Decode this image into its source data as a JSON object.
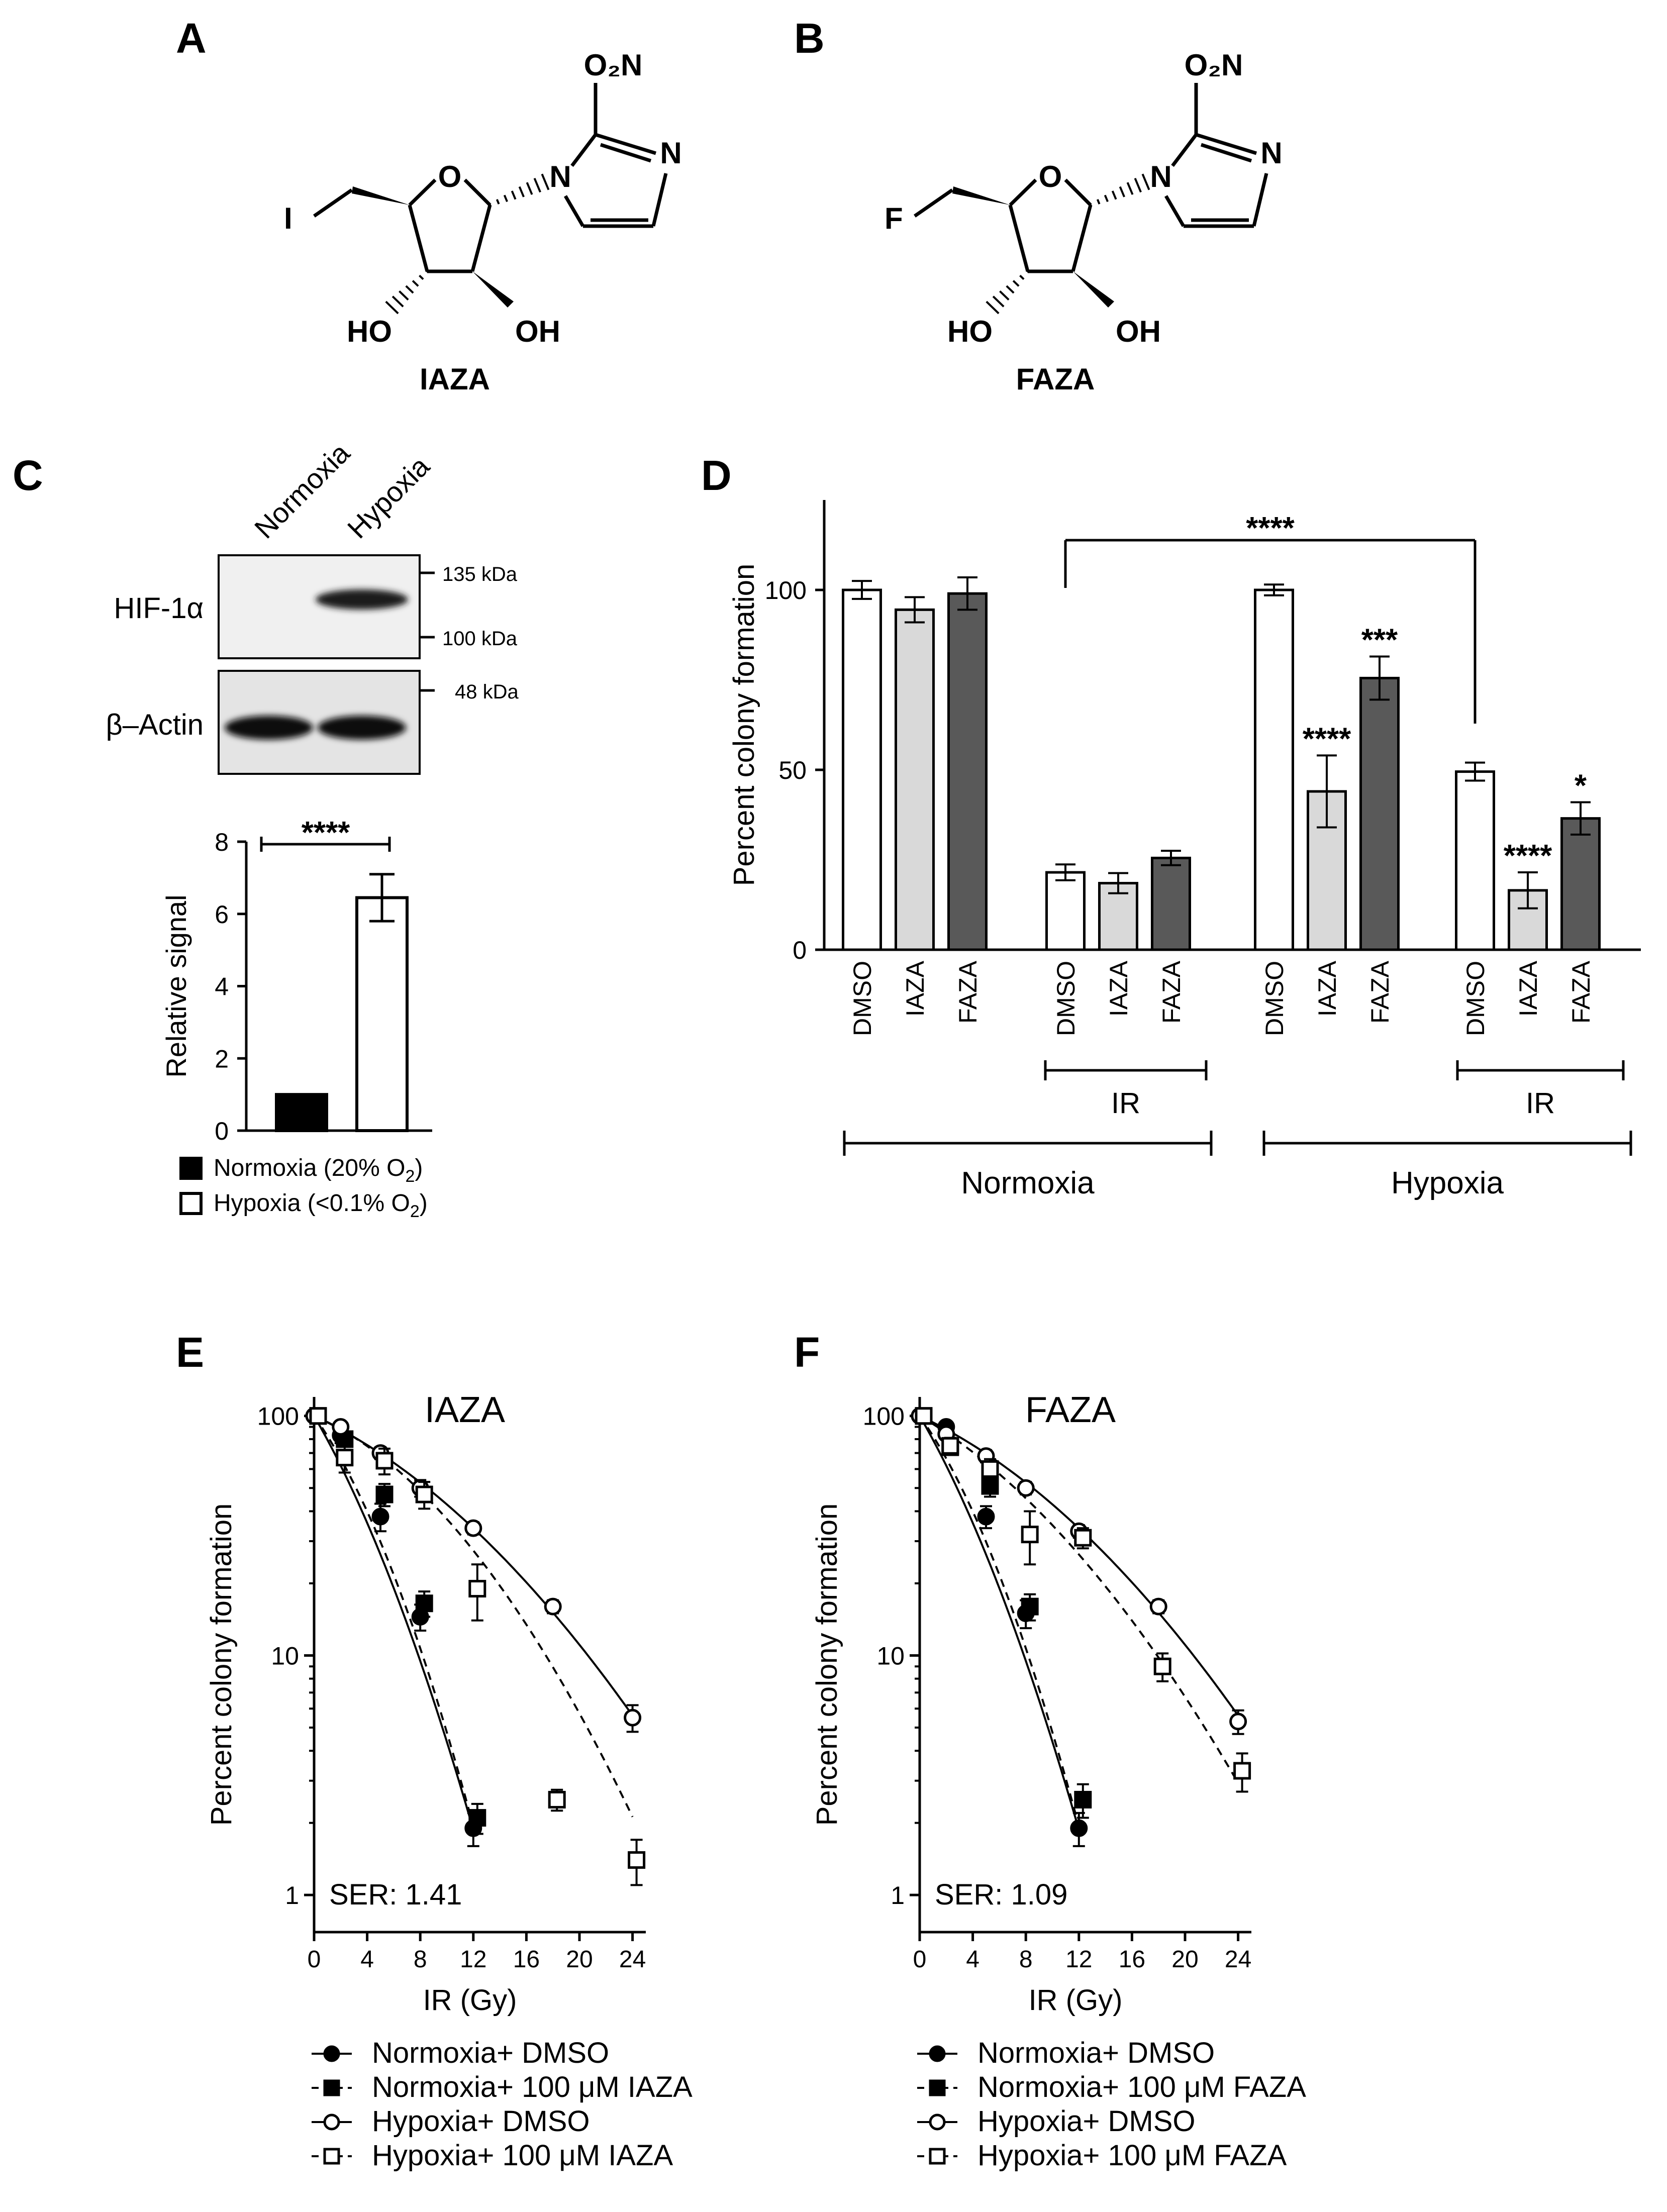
{
  "panels": {
    "A": "A",
    "B": "B",
    "C": "C",
    "D": "D",
    "E": "E",
    "F": "F"
  },
  "structures": {
    "iaza": {
      "name": "IAZA",
      "halogen": "I",
      "no2": "O₂N",
      "o": "O",
      "n_ring": "N",
      "n_amine": "N",
      "ho": "HO",
      "oh": "OH"
    },
    "faza": {
      "name": "FAZA",
      "halogen": "F",
      "no2": "O₂N",
      "o": "O",
      "n_ring": "N",
      "n_amine": "N",
      "ho": "HO",
      "oh": "OH"
    }
  },
  "western": {
    "lanes": [
      "Normoxia",
      "Hypoxia"
    ],
    "rows": [
      "HIF-1α",
      "β–Actin"
    ],
    "markers": [
      "135 kDa",
      "100 kDa",
      "48 kDa"
    ]
  },
  "chart_data": [
    {
      "panel": "C",
      "type": "bar",
      "categories": [
        "Normoxia (20% O₂)",
        "Hypoxia (<0.1% O₂)"
      ],
      "values": [
        1.0,
        6.45
      ],
      "errors": [
        0,
        0.65
      ],
      "colors": [
        "#000000",
        "#ffffff"
      ],
      "ylabel": "Relative signal",
      "ylim": [
        0,
        8
      ],
      "yticks": [
        0,
        2,
        4,
        6,
        8
      ],
      "significance": "****",
      "legend": [
        {
          "label": "Normoxia (20% O",
          "sub": "2",
          "close": ")",
          "fill": "#000000"
        },
        {
          "label": "Hypoxia (<0.1% O",
          "sub": "2",
          "close": ")",
          "fill": "#ffffff"
        }
      ]
    },
    {
      "panel": "D",
      "type": "bar",
      "ylabel": "Percent colony formation",
      "ylim": [
        0,
        125
      ],
      "yticks": [
        0,
        50,
        100
      ],
      "groups": [
        {
          "bars": [
            {
              "label": "DMSO",
              "value": 100,
              "err": 2.5,
              "color": "#ffffff",
              "sig": ""
            },
            {
              "label": "IAZA",
              "value": 94.5,
              "err": 3.5,
              "color": "#d9d9d9",
              "sig": ""
            },
            {
              "label": "FAZA",
              "value": 99,
              "err": 4.5,
              "color": "#595959",
              "sig": ""
            }
          ]
        },
        {
          "bars": [
            {
              "label": "DMSO",
              "value": 21.5,
              "err": 2.2,
              "color": "#ffffff",
              "sig": ""
            },
            {
              "label": "IAZA",
              "value": 18.5,
              "err": 2.8,
              "color": "#d9d9d9",
              "sig": ""
            },
            {
              "label": "FAZA",
              "value": 25.5,
              "err": 2,
              "color": "#595959",
              "sig": ""
            }
          ]
        },
        {
          "bars": [
            {
              "label": "DMSO",
              "value": 100,
              "err": 1.5,
              "color": "#ffffff",
              "sig": ""
            },
            {
              "label": "IAZA",
              "value": 44,
              "err": 10,
              "color": "#d9d9d9",
              "sig": "****"
            },
            {
              "label": "FAZA",
              "value": 75.5,
              "err": 6,
              "color": "#595959",
              "sig": "***"
            }
          ]
        },
        {
          "bars": [
            {
              "label": "DMSO",
              "value": 49.5,
              "err": 2.5,
              "color": "#ffffff",
              "sig": ""
            },
            {
              "label": "IAZA",
              "value": 16.5,
              "err": 5,
              "color": "#d9d9d9",
              "sig": "****"
            },
            {
              "label": "FAZA",
              "value": 36.5,
              "err": 4.5,
              "color": "#595959",
              "sig": "*"
            }
          ]
        }
      ],
      "ir_label": "IR",
      "conditions": [
        "Normoxia",
        "Hypoxia"
      ],
      "bracket_sig": "****"
    },
    {
      "panel": "E",
      "type": "scatter",
      "title": "IAZA",
      "xlabel": "IR (Gy)",
      "ylabel": "Percent colony formation",
      "yscale": "log",
      "xlim": [
        0,
        25
      ],
      "ylim": [
        0.7,
        120
      ],
      "xticks": [
        0,
        4,
        8,
        12,
        16,
        20,
        24
      ],
      "yticks": [
        {
          "v": 1,
          "label": "1"
        },
        {
          "v": 10,
          "label": "10"
        },
        {
          "v": 100,
          "label": "100"
        }
      ],
      "annotation": "SER: 1.41",
      "series": [
        {
          "name": "Normoxia+ DMSO",
          "marker": "circle",
          "filled": true,
          "line": "solid",
          "x": [
            0,
            2,
            5,
            8,
            12
          ],
          "y": [
            100,
            83,
            38,
            14.5,
            1.9
          ],
          "err": [
            0,
            6,
            5,
            1.8,
            0.3
          ],
          "fit_k": [
            0.22,
            0.0093
          ]
        },
        {
          "name": "Normoxia+ 100 μM IAZA",
          "marker": "square",
          "filled": true,
          "line": "dashed",
          "x": [
            0,
            2,
            5,
            8,
            12
          ],
          "y": [
            100,
            80,
            47,
            16.5,
            2.1
          ],
          "err": [
            0,
            5,
            5,
            2,
            0.3
          ],
          "fit_k": [
            0.18,
            0.0124
          ]
        },
        {
          "name": "Hypoxia+ DMSO",
          "marker": "circle",
          "filled": false,
          "line": "solid",
          "x": [
            0,
            2,
            5,
            8,
            12,
            18,
            24
          ],
          "y": [
            100,
            90,
            70,
            50,
            34,
            16,
            5.5
          ],
          "err": [
            0,
            4,
            4,
            4,
            2,
            1,
            0.7
          ],
          "fit_k": [
            0.06,
            0.0025
          ]
        },
        {
          "name": "Hypoxia+ 100 μM IAZA",
          "marker": "square",
          "filled": false,
          "line": "dashed",
          "x": [
            0,
            2,
            5,
            8,
            12,
            18,
            24
          ],
          "y": [
            100,
            67,
            65,
            47,
            19,
            2.5,
            1.4
          ],
          "err": [
            0,
            9,
            8,
            6,
            5,
            0.25,
            0.3
          ],
          "fit_k": [
            0.055,
            0.0044
          ]
        }
      ]
    },
    {
      "panel": "F",
      "type": "scatter",
      "title": "FAZA",
      "xlabel": "IR (Gy)",
      "ylabel": "Percent colony formation",
      "yscale": "log",
      "xlim": [
        0,
        25
      ],
      "ylim": [
        0.7,
        120
      ],
      "xticks": [
        0,
        4,
        8,
        12,
        16,
        20,
        24
      ],
      "yticks": [
        {
          "v": 1,
          "label": "1"
        },
        {
          "v": 10,
          "label": "10"
        },
        {
          "v": 100,
          "label": "100"
        }
      ],
      "annotation": "SER: 1.09",
      "series": [
        {
          "name": "Normoxia+ DMSO",
          "marker": "circle",
          "filled": true,
          "line": "solid",
          "x": [
            0,
            2,
            5,
            8,
            12
          ],
          "y": [
            100,
            90,
            38,
            15,
            1.9
          ],
          "err": [
            0,
            4,
            4,
            2,
            0.3
          ],
          "fit_k": [
            0.22,
            0.0093
          ]
        },
        {
          "name": "Normoxia+ 100 μM FAZA",
          "marker": "square",
          "filled": true,
          "line": "dashed",
          "x": [
            0,
            2,
            5,
            8,
            12
          ],
          "y": [
            100,
            74,
            51,
            16,
            2.5
          ],
          "err": [
            0,
            5,
            5,
            2,
            0.4
          ],
          "fit_k": [
            0.18,
            0.0124
          ]
        },
        {
          "name": "Hypoxia+ DMSO",
          "marker": "circle",
          "filled": false,
          "line": "solid",
          "x": [
            0,
            2,
            5,
            8,
            12,
            18,
            24
          ],
          "y": [
            100,
            84,
            68,
            50,
            33,
            16,
            5.3
          ],
          "err": [
            0,
            4,
            4,
            3,
            2,
            1,
            0.6
          ],
          "fit_k": [
            0.06,
            0.0025
          ]
        },
        {
          "name": "Hypoxia+ 100 μM FAZA",
          "marker": "square",
          "filled": false,
          "line": "dashed",
          "x": [
            0,
            2,
            5,
            8,
            12,
            18,
            24
          ],
          "y": [
            100,
            75,
            60,
            32,
            31,
            9,
            3.3
          ],
          "err": [
            0,
            6,
            6,
            8,
            3,
            1.2,
            0.6
          ],
          "fit_k": [
            0.075,
            0.003
          ]
        }
      ]
    }
  ]
}
